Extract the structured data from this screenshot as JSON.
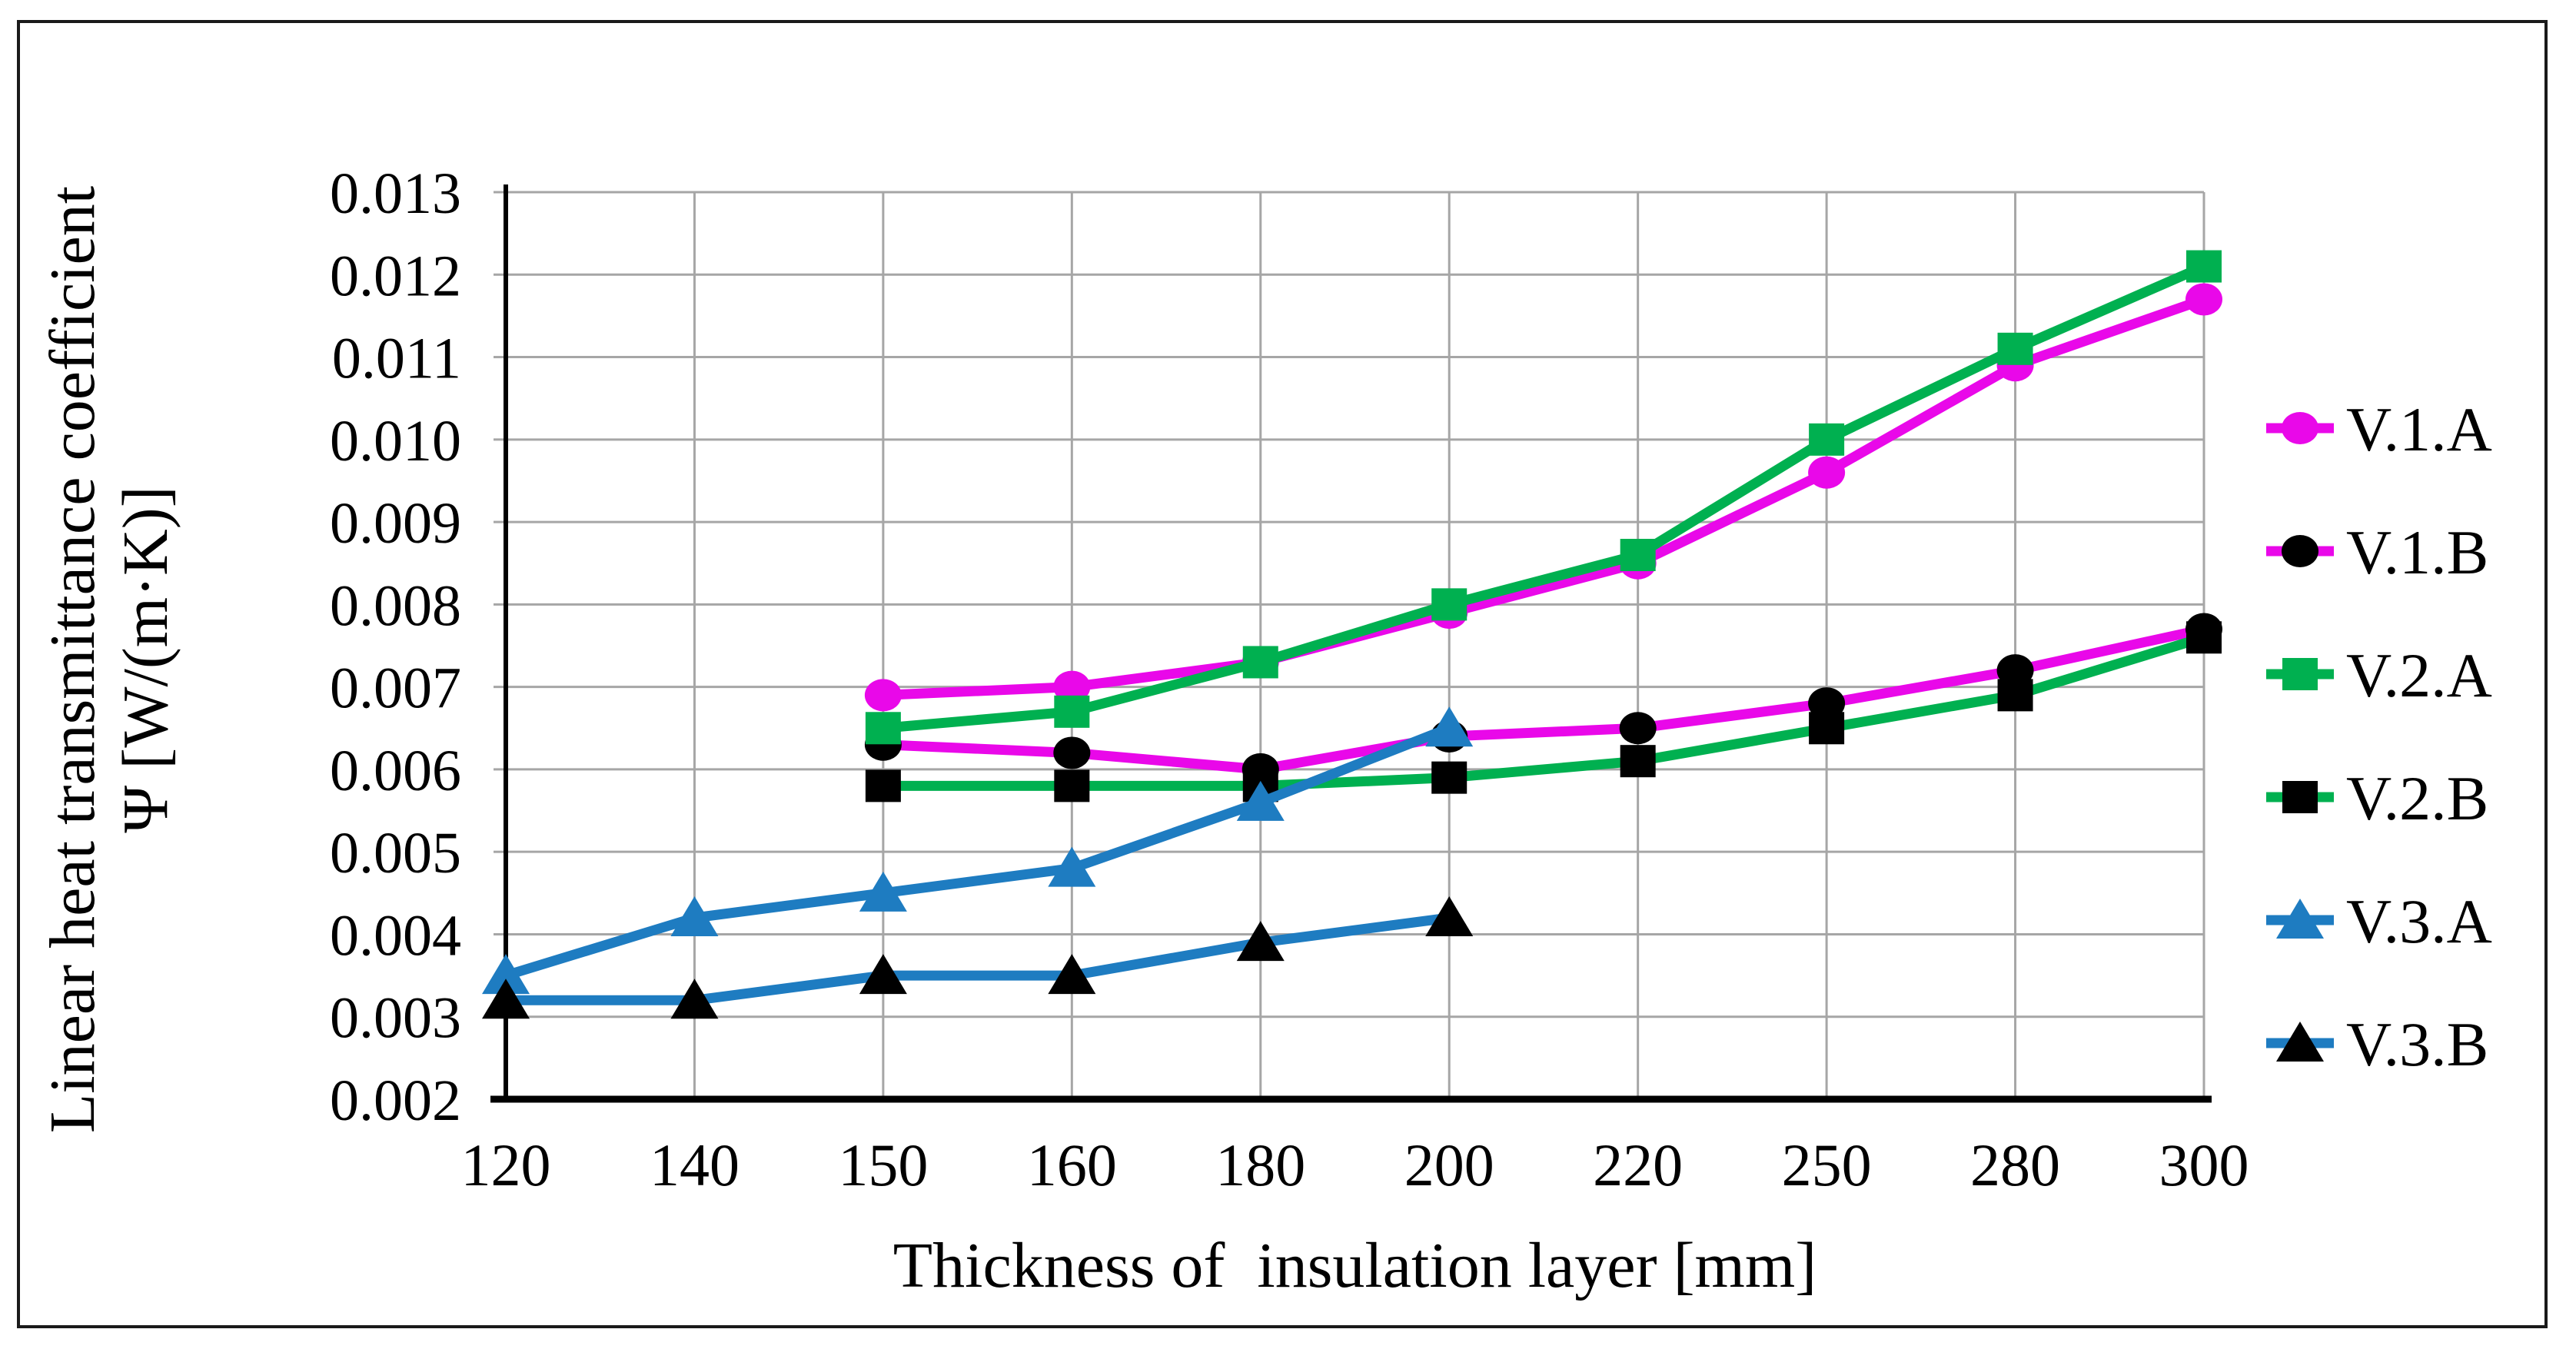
{
  "figure": {
    "background": "#ffffff",
    "border_color": "#1a1a1a"
  },
  "chart_data": {
    "type": "line",
    "title": "",
    "xlabel": "Thickness of  insulation layer [mm]",
    "ylabel_line1": "Linear heat transmittance coefficient",
    "ylabel_line2": "Ψ [W/(m·K)]",
    "categories": [
      "120",
      "140",
      "150",
      "160",
      "180",
      "200",
      "220",
      "250",
      "280",
      "300"
    ],
    "y_ticks": [
      "0.013",
      "0.012",
      "0.011",
      "0.010",
      "0.009",
      "0.008",
      "0.007",
      "0.006",
      "0.005",
      "0.004",
      "0.003",
      "0.002"
    ],
    "ylim": [
      0.002,
      0.013
    ],
    "grid": true,
    "legend_position": "right",
    "colors": {
      "grid": "#a6a6a6",
      "axis": "#000000",
      "magenta": "#e908e9",
      "green": "#00b050",
      "blue": "#1e7cc1",
      "black": "#000000"
    },
    "series": [
      {
        "name": "V.1.A",
        "line_color": "#e908e9",
        "marker": "circle",
        "marker_color": "#e908e9",
        "start_index": 2,
        "values": [
          0.0069,
          0.007,
          0.0073,
          0.0079,
          0.0085,
          0.0096,
          0.0109,
          0.0117
        ]
      },
      {
        "name": "V.1.B",
        "line_color": "#e908e9",
        "marker": "circle",
        "marker_color": "#000000",
        "start_index": 2,
        "values": [
          0.0063,
          0.0062,
          0.006,
          0.0064,
          0.0065,
          0.0068,
          0.0072,
          0.0077
        ]
      },
      {
        "name": "V.2.A",
        "line_color": "#00b050",
        "marker": "square",
        "marker_color": "#00b050",
        "start_index": 2,
        "values": [
          0.0065,
          0.0067,
          0.0073,
          0.008,
          0.0086,
          0.01,
          0.0111,
          0.0121
        ]
      },
      {
        "name": "V.2.B",
        "line_color": "#00b050",
        "marker": "square",
        "marker_color": "#000000",
        "start_index": 2,
        "values": [
          0.0058,
          0.0058,
          0.0058,
          0.0059,
          0.0061,
          0.0065,
          0.0069,
          0.0076
        ]
      },
      {
        "name": "V.3.A",
        "line_color": "#1e7cc1",
        "marker": "triangle",
        "marker_color": "#1e7cc1",
        "start_index": 0,
        "values": [
          0.0035,
          0.0042,
          0.0045,
          0.0048,
          0.0056,
          0.0065
        ]
      },
      {
        "name": "V.3.B",
        "line_color": "#1e7cc1",
        "marker": "triangle",
        "marker_color": "#000000",
        "start_index": 0,
        "values": [
          0.0032,
          0.0032,
          0.0035,
          0.0035,
          0.0039,
          0.0042
        ]
      }
    ]
  }
}
